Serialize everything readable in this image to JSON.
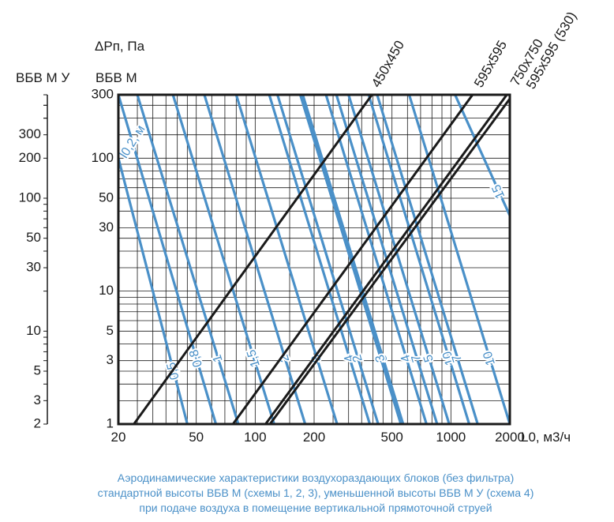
{
  "chart_data": {
    "type": "line",
    "title": "",
    "x_axis": {
      "label": "L0, м3/ч",
      "scale": "log",
      "range": [
        20,
        2000
      ],
      "ticks": [
        "20",
        "50",
        "100",
        "200",
        "500",
        "1000",
        "2000"
      ],
      "tick_values": [
        20,
        50,
        100,
        200,
        500,
        1000,
        2000
      ]
    },
    "y_axis_primary": {
      "label": "ΔPп, Па",
      "sublabel": "ВБВ М",
      "scale": "log",
      "range": [
        1,
        300
      ],
      "ticks": [
        "1",
        "3",
        "5",
        "10",
        "30",
        "50",
        "100",
        "300"
      ],
      "tick_values": [
        1,
        3,
        5,
        10,
        30,
        50,
        100,
        300
      ]
    },
    "y_axis_secondary": {
      "sublabel": "ВБВ М У",
      "scale": "log",
      "range": [
        2,
        600
      ],
      "ticks": [
        "2",
        "3",
        "5",
        "10",
        "30",
        "50",
        "100",
        "200",
        "300"
      ],
      "tick_values": [
        2,
        3,
        5,
        10,
        30,
        50,
        100,
        200,
        300
      ]
    },
    "grid": true,
    "series": [
      {
        "name": "450x450",
        "x": [
          24,
          395
        ],
        "y": [
          1,
          300
        ]
      },
      {
        "name": "595x595",
        "x": [
          77,
          1290
        ],
        "y": [
          1,
          300
        ]
      },
      {
        "name": "750x750",
        "x": [
          113,
          1930
        ],
        "y": [
          1,
          300
        ]
      },
      {
        "name": "595x595 (530)",
        "x": [
          119,
          2000
        ],
        "y": [
          1,
          280
        ]
      }
    ],
    "throw_curves": {
      "label": "l0,2, м",
      "curves": [
        {
          "label": "0,5",
          "x": [
            20,
            45
          ],
          "y": [
            100,
            1
          ]
        },
        {
          "label": "0,8",
          "x": [
            20,
            63
          ],
          "y": [
            300,
            1
          ]
        },
        {
          "label": "1",
          "x": [
            25,
            82
          ],
          "y": [
            300,
            1
          ]
        },
        {
          "label": "1,5",
          "x": [
            38,
            125
          ],
          "y": [
            300,
            1
          ]
        },
        {
          "label": "2",
          "x": [
            55,
            180
          ],
          "y": [
            300,
            1
          ]
        },
        {
          "label": "3",
          "x": [
            80,
            262
          ],
          "y": [
            300,
            1
          ]
        },
        {
          "label": "4",
          "x": [
            118,
            385
          ],
          "y": [
            300,
            1
          ]
        },
        {
          "label": "5",
          "x": [
            175,
            570
          ],
          "y": [
            300,
            1
          ]
        },
        {
          "label": "7",
          "x": [
            260,
            850
          ],
          "y": [
            300,
            1
          ]
        },
        {
          "label": "10",
          "x": [
            380,
            1240
          ],
          "y": [
            300,
            1
          ]
        },
        {
          "label": "2",
          "x": [
            130,
            425
          ],
          "y": [
            300,
            1
          ]
        },
        {
          "label": "3",
          "x": [
            170,
            555
          ],
          "y": [
            300,
            1
          ]
        },
        {
          "label": "4",
          "x": [
            230,
            750
          ],
          "y": [
            300,
            1
          ]
        },
        {
          "label": "5",
          "x": [
            300,
            980
          ],
          "y": [
            300,
            1
          ]
        },
        {
          "label": "7",
          "x": [
            420,
            1370
          ],
          "y": [
            300,
            1
          ]
        },
        {
          "label": "10",
          "x": [
            612,
            2000
          ],
          "y": [
            300,
            1
          ]
        },
        {
          "label": "15",
          "x": [
            1050,
            2000
          ],
          "y": [
            300,
            37
          ]
        }
      ]
    }
  },
  "caption": {
    "line1": "Аэродинамические характеристики воздухораздающих блоков (без фильтра)",
    "line2": "стандартной высоты ВБВ М (схемы 1, 2, 3), уменьшенной высоты ВБВ М У (схема 4)",
    "line3": "при подаче воздуха в помещение вертикальной прямоточной струей"
  },
  "colors": {
    "axis": "#1a1a1a",
    "grid": "#1a1a1a",
    "curves": "#4a90c8",
    "caption": "#4a90c8"
  }
}
